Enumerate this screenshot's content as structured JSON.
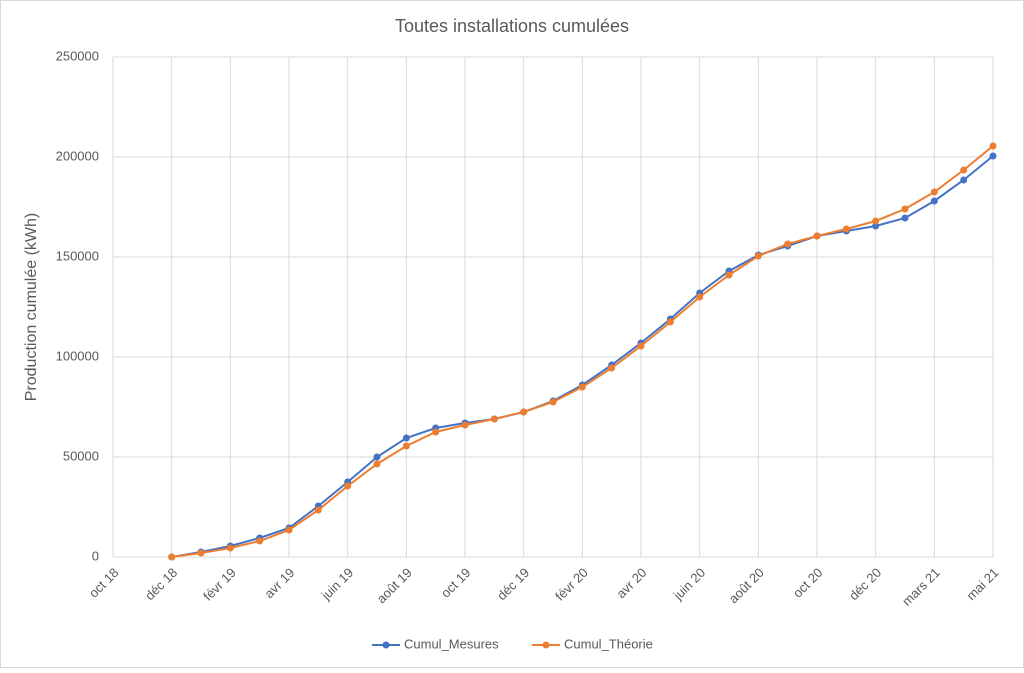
{
  "chart_data": {
    "type": "line",
    "title": "Toutes installations cumulées",
    "y_label": "Production cumulée (kWh)",
    "categories": [
      "oct 18",
      null,
      "déc 18",
      null,
      "févr 19",
      null,
      "avr 19",
      null,
      "juin 19",
      null,
      "août 19",
      null,
      "oct 19",
      null,
      "déc 19",
      null,
      "févr 20",
      null,
      "avr 20",
      null,
      "juin 20",
      null,
      "août 20",
      null,
      "oct 20",
      null,
      "déc 20",
      null,
      "mars 21",
      null,
      "mai 21"
    ],
    "series": [
      {
        "name": "Cumul_Mesures",
        "color": "#4472c4",
        "values": [
          null,
          null,
          0,
          2500,
          5500,
          9500,
          14500,
          25500,
          37500,
          50000,
          59500,
          64500,
          67000,
          69000,
          72500,
          78000,
          86000,
          96000,
          107000,
          119000,
          132000,
          143000,
          151000,
          155500,
          160500,
          163000,
          165500,
          169500,
          178000,
          188500,
          200500
        ]
      },
      {
        "name": "Cumul_Théorie",
        "color": "#ed7d31",
        "values": [
          null,
          null,
          0,
          2000,
          4500,
          8000,
          13500,
          23500,
          35500,
          46500,
          55500,
          62500,
          66000,
          69000,
          72500,
          77500,
          85000,
          94500,
          105500,
          117500,
          130000,
          141000,
          150500,
          156500,
          160500,
          164000,
          168000,
          174000,
          182500,
          193500,
          205500
        ]
      }
    ],
    "ylim": [
      0,
      250000
    ],
    "yticks": [
      0,
      50000,
      100000,
      150000,
      200000,
      250000
    ],
    "grid": true,
    "legend": "bottom"
  }
}
